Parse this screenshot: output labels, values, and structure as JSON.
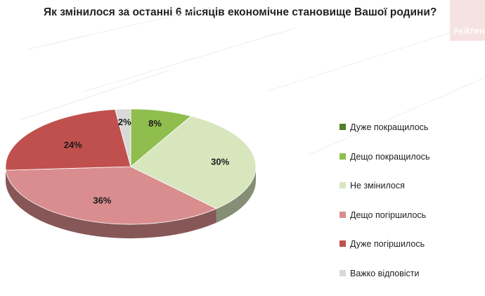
{
  "title": "Як змінилося за останні 6 місяців економічне становище Вашої родини?",
  "logo": {
    "text": "РЕЙТИНГ"
  },
  "chart_data": {
    "type": "pie",
    "title": "Як змінилося за останні 6 місяців економічне становище Вашої родини?",
    "legend_position": "right",
    "slices": [
      {
        "label": "Дуже покращилось",
        "value": 0,
        "display": "",
        "color": "#4f7f2a"
      },
      {
        "label": "Дещо покращилось",
        "value": 8,
        "display": "8%",
        "color": "#8fbe4e"
      },
      {
        "label": "Не змінилося",
        "value": 30,
        "display": "30%",
        "color": "#d8e6be"
      },
      {
        "label": "Дещо погіршилось",
        "value": 36,
        "display": "36%",
        "color": "#d98d8e"
      },
      {
        "label": "Дуже погіршилось",
        "value": 24,
        "display": "24%",
        "color": "#c0504d"
      },
      {
        "label": "Важко відповісти",
        "value": 2,
        "display": "2%",
        "color": "#d9d9d9"
      }
    ]
  }
}
